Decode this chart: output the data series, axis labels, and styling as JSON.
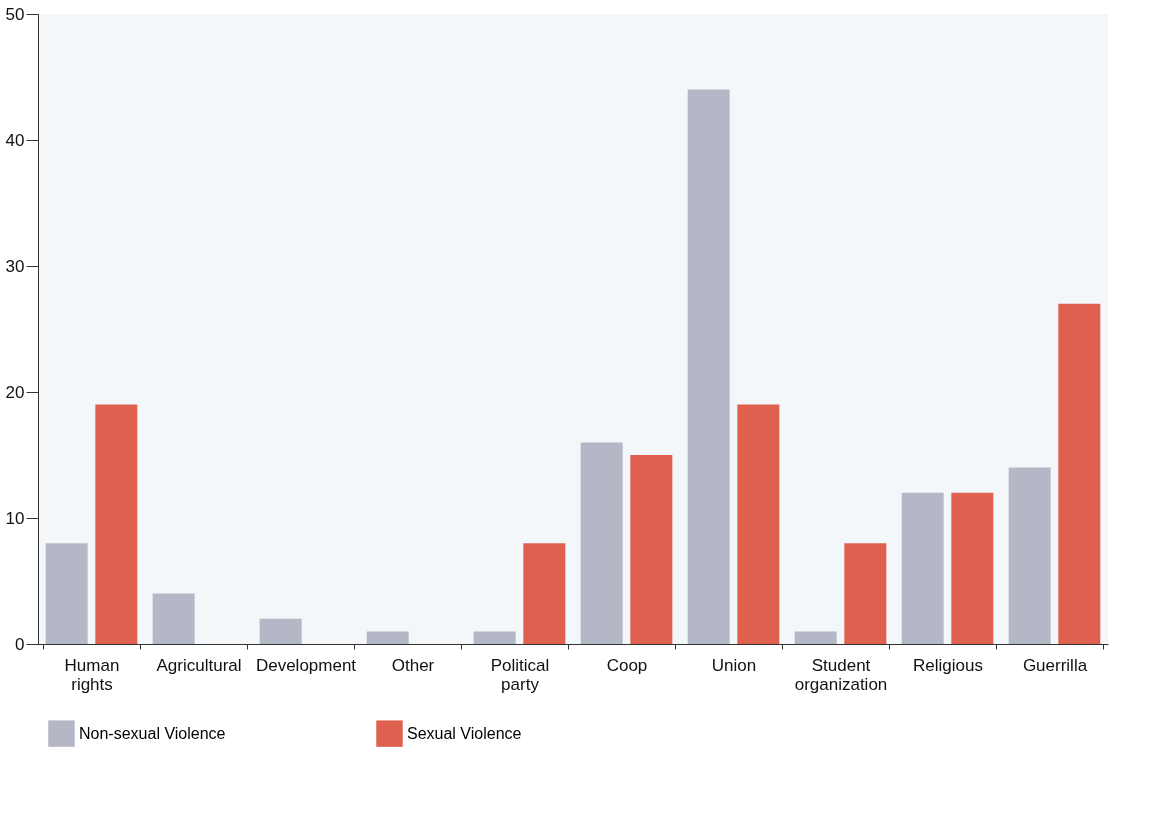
{
  "chart_data": {
    "type": "bar",
    "categories": [
      "Human rights",
      "Agricultural",
      "Development",
      "Other",
      "Political party",
      "Coop",
      "Union",
      "Student organization",
      "Religious",
      "Guerrilla"
    ],
    "series": [
      {
        "name": "Non-sexual Violence",
        "color": "#b4b8c6",
        "values": [
          8,
          4,
          2,
          1,
          1,
          16,
          44,
          1,
          12,
          14
        ]
      },
      {
        "name": "Sexual Violence",
        "color": "#e0604f",
        "values": [
          19,
          0,
          0,
          0,
          8,
          15,
          19,
          8,
          12,
          27
        ]
      }
    ],
    "ylim": [
      0,
      50
    ],
    "yticks": [
      0,
      10,
      20,
      30,
      40,
      50
    ],
    "grid": false,
    "legend": "bottom"
  }
}
